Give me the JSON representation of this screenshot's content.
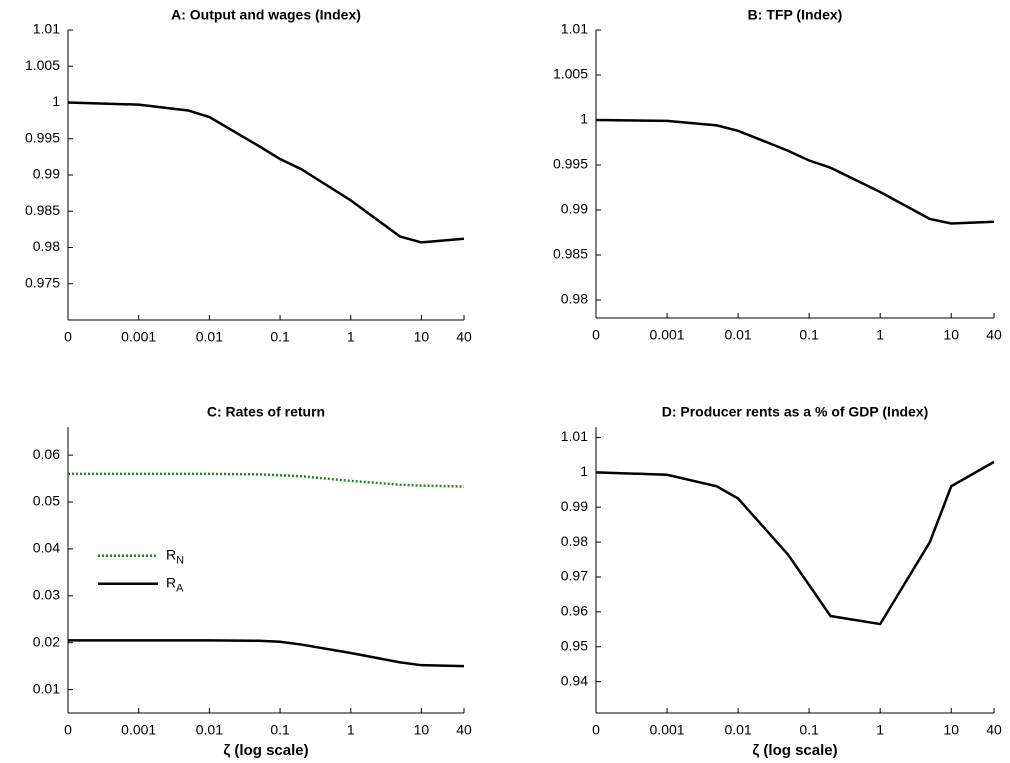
{
  "chart_data": [
    {
      "type": "line",
      "title": "A: Output and wages (Index)",
      "xscale": "log",
      "x": [
        0.0001,
        0.001,
        0.005,
        0.01,
        0.05,
        0.1,
        0.2,
        1,
        5,
        10,
        40
      ],
      "series": [
        {
          "color": "#000000",
          "style": "solid",
          "values": [
            1.0,
            0.9997,
            0.9989,
            0.998,
            0.994,
            0.9922,
            0.9908,
            0.9865,
            0.9815,
            0.9807,
            0.9812
          ]
        }
      ],
      "xlim": [
        0.0001,
        40
      ],
      "xticks": [
        {
          "value": 0.0001,
          "label": "0"
        },
        0.001,
        0.01,
        0.1,
        1,
        10,
        40
      ],
      "ylim": [
        0.97,
        1.01
      ],
      "yticks": [
        0.975,
        0.98,
        0.985,
        0.99,
        0.995,
        1,
        1.005,
        1.01
      ]
    },
    {
      "type": "line",
      "title": "B: TFP (Index)",
      "xscale": "log",
      "x": [
        0.0001,
        0.001,
        0.005,
        0.01,
        0.05,
        0.1,
        0.2,
        1,
        5,
        10,
        40
      ],
      "series": [
        {
          "color": "#000000",
          "style": "solid",
          "values": [
            1.0,
            0.9999,
            0.9994,
            0.9988,
            0.9966,
            0.9955,
            0.9947,
            0.992,
            0.989,
            0.9885,
            0.9887
          ]
        }
      ],
      "xlim": [
        0.0001,
        40
      ],
      "xticks": [
        {
          "value": 0.0001,
          "label": "0"
        },
        0.001,
        0.01,
        0.1,
        1,
        10,
        40
      ],
      "ylim": [
        0.978,
        1.01
      ],
      "yticks": [
        0.98,
        0.985,
        0.99,
        0.995,
        1,
        1.005,
        1.01
      ]
    },
    {
      "type": "line",
      "title": "C: Rates of return",
      "xscale": "log",
      "xlabel": "ζ (log scale)",
      "legend": "west",
      "x": [
        0.0001,
        0.001,
        0.005,
        0.01,
        0.05,
        0.1,
        0.2,
        1,
        5,
        10,
        40
      ],
      "series": [
        {
          "name": "R_N",
          "color": "#1a8a1a",
          "style": "dotted",
          "values": [
            0.056,
            0.056,
            0.056,
            0.056,
            0.0559,
            0.0557,
            0.0555,
            0.0545,
            0.0537,
            0.0535,
            0.0533
          ]
        },
        {
          "name": "R_A",
          "color": "#000000",
          "style": "solid",
          "values": [
            0.0205,
            0.0205,
            0.0205,
            0.0205,
            0.0204,
            0.0202,
            0.0196,
            0.0178,
            0.0158,
            0.0152,
            0.015
          ]
        }
      ],
      "xlim": [
        0.0001,
        40
      ],
      "xticks": [
        {
          "value": 0.0001,
          "label": "0"
        },
        0.001,
        0.01,
        0.1,
        1,
        10,
        40
      ],
      "ylim": [
        0.005,
        0.066
      ],
      "yticks": [
        0.01,
        0.02,
        0.03,
        0.04,
        0.05,
        0.06
      ]
    },
    {
      "type": "line",
      "title": "D: Producer rents as a % of GDP (Index)",
      "xscale": "log",
      "xlabel": "ζ (log scale)",
      "x": [
        0.0001,
        0.001,
        0.005,
        0.01,
        0.05,
        0.1,
        0.2,
        1,
        5,
        10,
        40
      ],
      "series": [
        {
          "color": "#000000",
          "style": "solid",
          "values": [
            1.0,
            0.9993,
            0.996,
            0.9925,
            0.9765,
            0.9677,
            0.9588,
            0.9565,
            0.98,
            0.996,
            1.003
          ]
        }
      ],
      "xlim": [
        0.0001,
        40
      ],
      "xticks": [
        {
          "value": 0.0001,
          "label": "0"
        },
        0.001,
        0.01,
        0.1,
        1,
        10,
        40
      ],
      "ylim": [
        0.931,
        1.013
      ],
      "yticks": [
        0.94,
        0.95,
        0.96,
        0.97,
        0.98,
        0.99,
        1,
        1.01
      ]
    }
  ]
}
